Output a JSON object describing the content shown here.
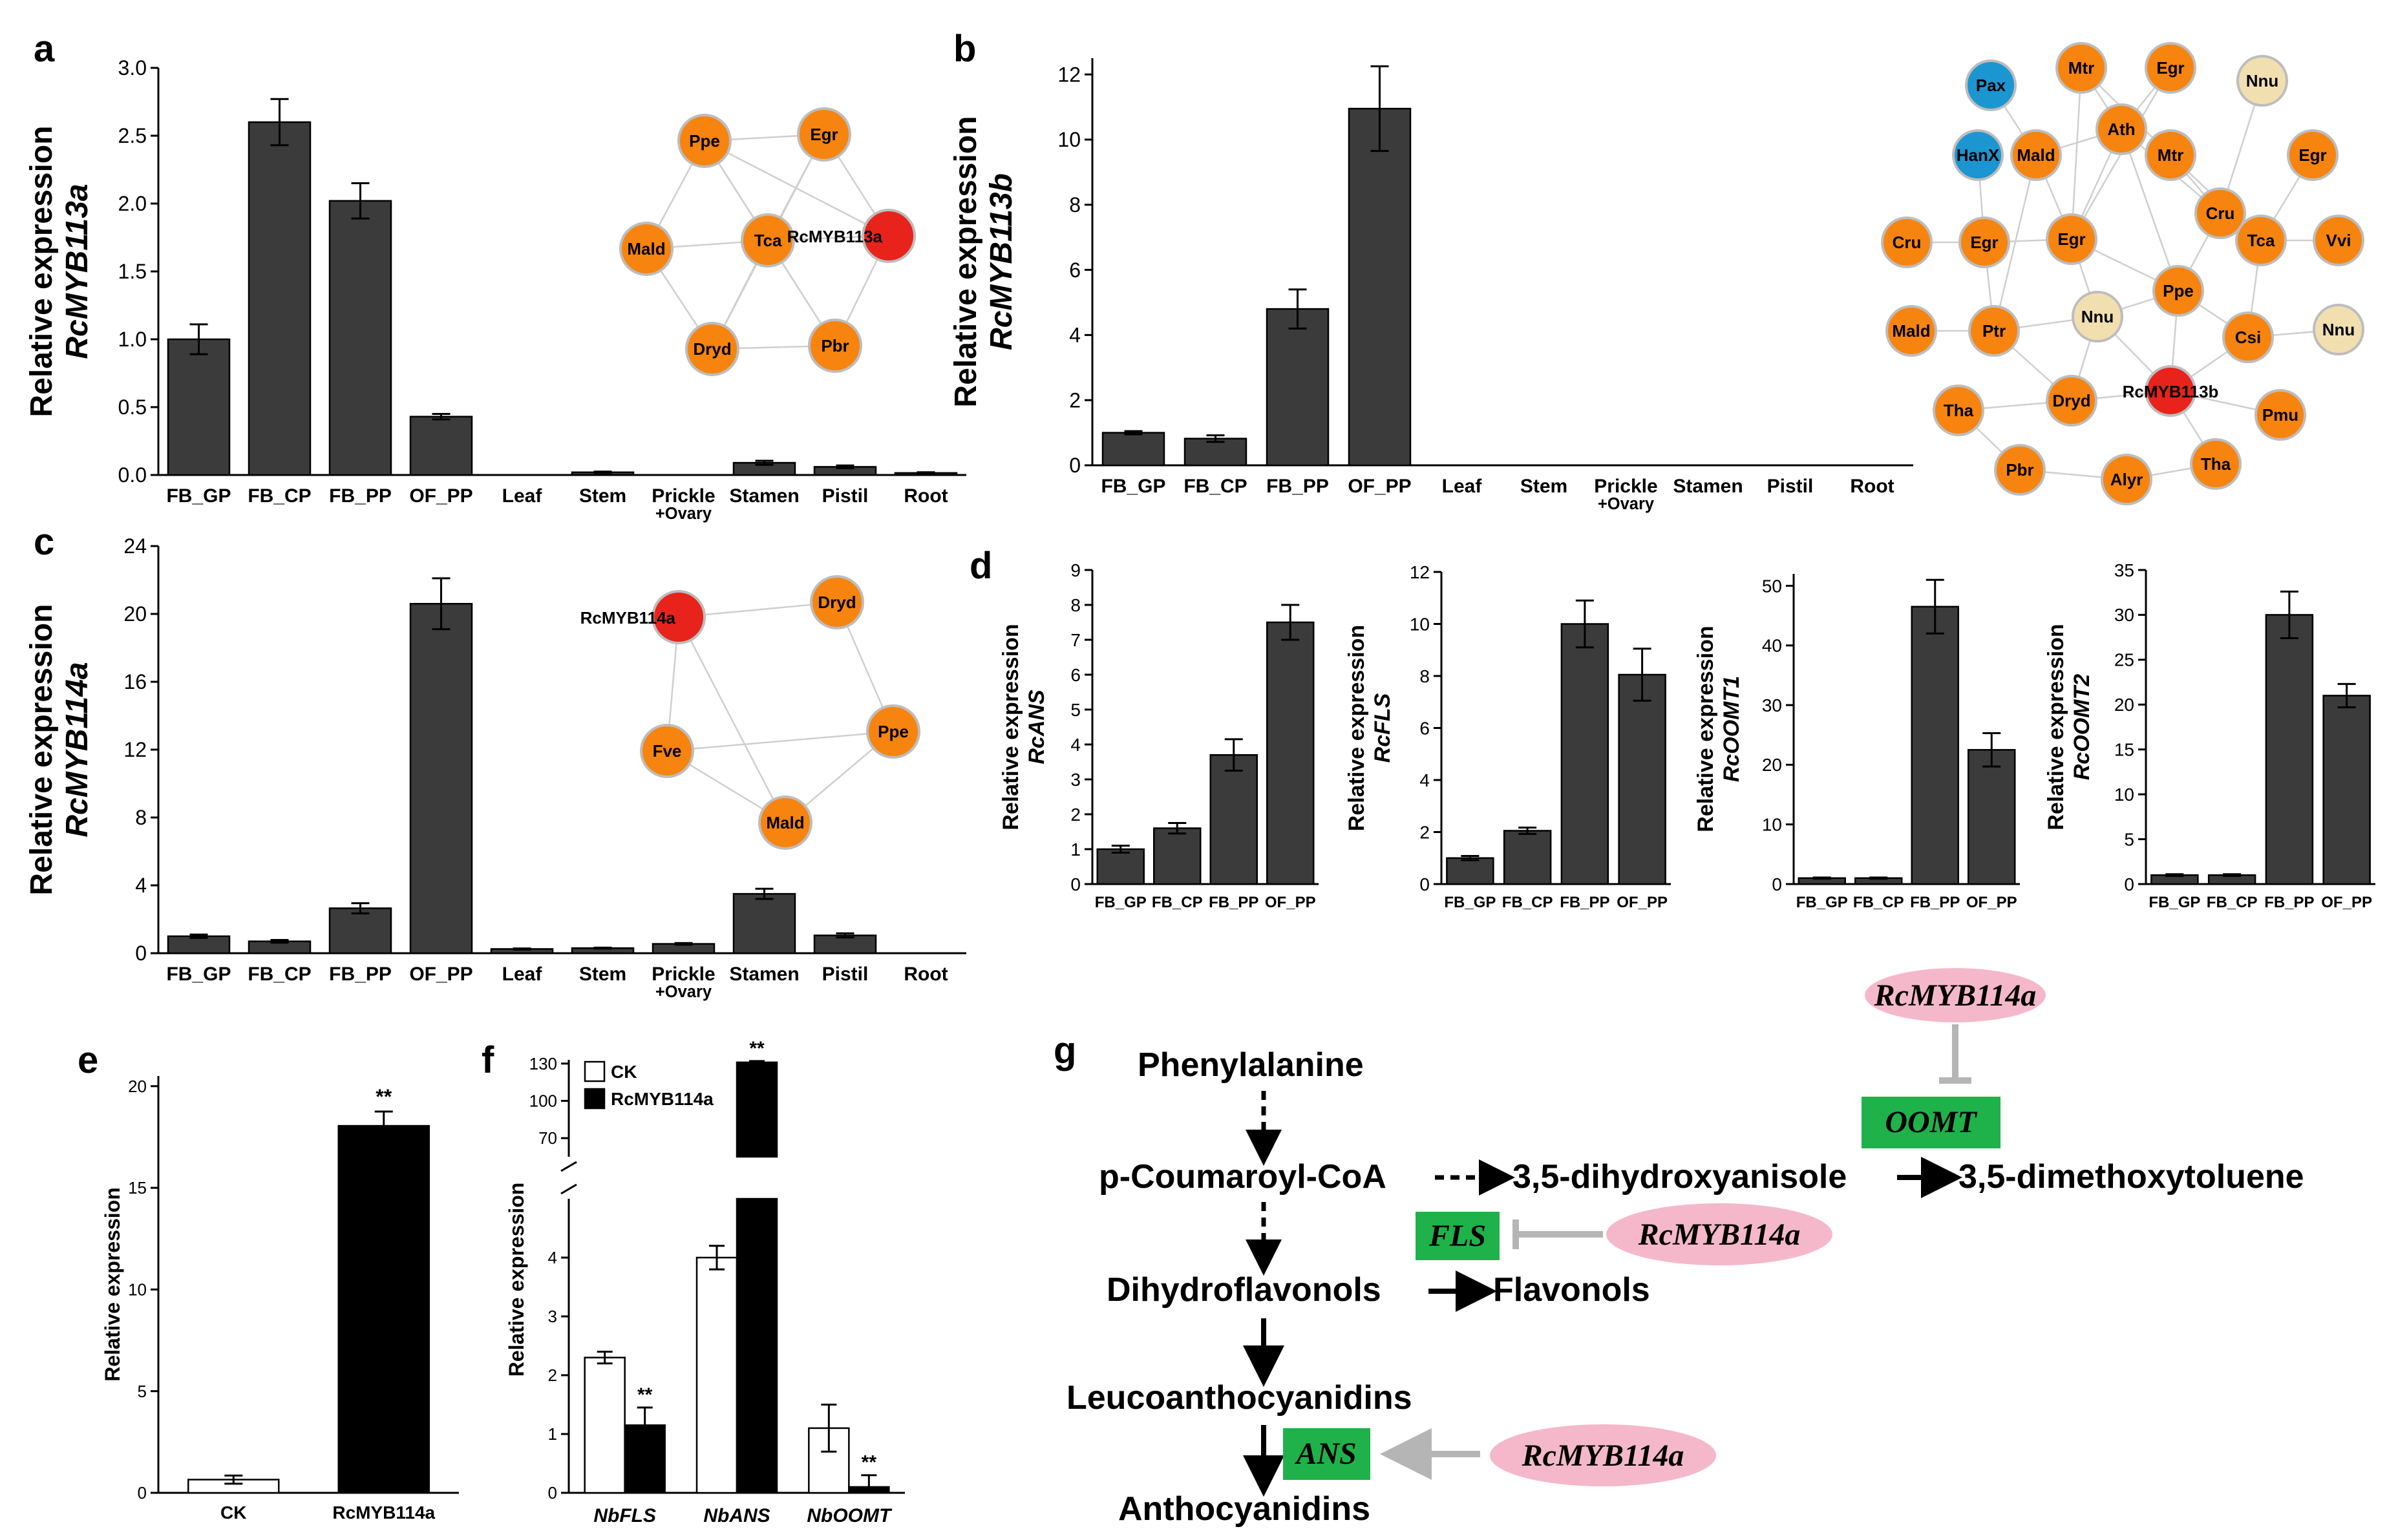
{
  "panel_labels": [
    "a",
    "b",
    "c",
    "d",
    "e",
    "f",
    "g"
  ],
  "chart_data": [
    {
      "id": "a",
      "type": "bar",
      "ylabel": "Relative expression",
      "ylabel_gene": "RcMYB113a",
      "categories": [
        "FB_GP",
        "FB_CP",
        "FB_PP",
        "OF_PP",
        "Leaf",
        "Stem",
        "Prickle",
        "Stamen",
        "Pistil",
        "Root"
      ],
      "values": [
        1.0,
        2.6,
        2.02,
        0.43,
        0.0,
        0.02,
        0.0,
        0.09,
        0.06,
        0.015
      ],
      "errors": [
        0.11,
        0.17,
        0.13,
        0.02,
        0.0,
        0.005,
        0.0,
        0.015,
        0.01,
        0.005
      ],
      "ylim": [
        0,
        3.0
      ],
      "yticks": [
        "0.0",
        "0.5",
        "1.0",
        "1.5",
        "2.0",
        "2.5",
        "3.0"
      ],
      "ytick_values": [
        0,
        0.5,
        1.0,
        1.5,
        2.0,
        2.5,
        3.0
      ],
      "sub_label": "+Ovary"
    },
    {
      "id": "b",
      "type": "bar",
      "ylabel": "Relative expression",
      "ylabel_gene": "RcMYB113b",
      "categories": [
        "FB_GP",
        "FB_CP",
        "FB_PP",
        "OF_PP",
        "Leaf",
        "Stem",
        "Prickle",
        "Stamen",
        "Pistil",
        "Root"
      ],
      "values": [
        1.0,
        0.82,
        4.8,
        10.95,
        0,
        0,
        0,
        0,
        0,
        0
      ],
      "errors": [
        0.05,
        0.1,
        0.6,
        1.3,
        0,
        0,
        0,
        0,
        0,
        0
      ],
      "ylim": [
        0,
        12.5
      ],
      "yticks": [
        "0",
        "2",
        "4",
        "6",
        "8",
        "10",
        "12"
      ],
      "ytick_values": [
        0,
        2,
        4,
        6,
        8,
        10,
        12
      ],
      "sub_label": "+Ovary"
    },
    {
      "id": "c",
      "type": "bar",
      "ylabel": "Relative expression",
      "ylabel_gene": "RcMYB114a",
      "categories": [
        "FB_GP",
        "FB_CP",
        "FB_PP",
        "OF_PP",
        "Leaf",
        "Stem",
        "Prickle",
        "Stamen",
        "Pistil",
        "Root"
      ],
      "values": [
        1.0,
        0.7,
        2.65,
        20.6,
        0.25,
        0.3,
        0.55,
        3.5,
        1.05,
        0
      ],
      "errors": [
        0.1,
        0.08,
        0.3,
        1.5,
        0.03,
        0.03,
        0.05,
        0.3,
        0.12,
        0
      ],
      "ylim": [
        0,
        24
      ],
      "yticks": [
        "0",
        "4",
        "8",
        "12",
        "16",
        "20",
        "24"
      ],
      "ytick_values": [
        0,
        4,
        8,
        12,
        16,
        20,
        24
      ],
      "sub_label": "+Ovary"
    },
    {
      "id": "d1",
      "type": "bar",
      "ylabel": "Relative expression",
      "ylabel_gene": "RcANS",
      "categories": [
        "FB_GP",
        "FB_CP",
        "FB_PP",
        "OF_PP"
      ],
      "values": [
        1.0,
        1.6,
        3.7,
        7.5
      ],
      "errors": [
        0.1,
        0.15,
        0.45,
        0.5
      ],
      "ylim": [
        0,
        9
      ],
      "yticks": [
        "0",
        "1",
        "2",
        "3",
        "4",
        "5",
        "6",
        "7",
        "8",
        "9"
      ],
      "ytick_values": [
        0,
        1,
        2,
        3,
        4,
        5,
        6,
        7,
        8,
        9
      ]
    },
    {
      "id": "d2",
      "type": "bar",
      "ylabel": "Relative expression",
      "ylabel_gene": "RcFLS",
      "categories": [
        "FB_GP",
        "FB_CP",
        "FB_PP",
        "OF_PP"
      ],
      "values": [
        1.0,
        2.05,
        10.0,
        8.05
      ],
      "errors": [
        0.08,
        0.12,
        0.9,
        1.0
      ],
      "ylim": [
        0,
        12
      ],
      "yticks": [
        "0",
        "2",
        "4",
        "6",
        "8",
        "10",
        "12"
      ],
      "ytick_values": [
        0,
        2,
        4,
        6,
        8,
        10,
        12
      ]
    },
    {
      "id": "d3",
      "type": "bar",
      "ylabel": "Relative expression",
      "ylabel_gene": "RcOOMT1",
      "categories": [
        "FB_GP",
        "FB_CP",
        "FB_PP",
        "OF_PP"
      ],
      "values": [
        1.0,
        1.0,
        46.5,
        22.5
      ],
      "errors": [
        0.1,
        0.1,
        4.5,
        2.8
      ],
      "ylim": [
        0,
        52
      ],
      "yticks": [
        "0",
        "10",
        "20",
        "30",
        "40",
        "50"
      ],
      "ytick_values": [
        0,
        10,
        20,
        30,
        40,
        50
      ]
    },
    {
      "id": "d4",
      "type": "bar",
      "ylabel": "Relative expression",
      "ylabel_gene": "RcOOMT2",
      "categories": [
        "FB_GP",
        "FB_CP",
        "FB_PP",
        "OF_PP"
      ],
      "values": [
        1.0,
        1.0,
        30.0,
        21.0
      ],
      "errors": [
        0.1,
        0.1,
        2.6,
        1.3
      ],
      "ylim": [
        0,
        35
      ],
      "yticks": [
        "0",
        "5",
        "10",
        "15",
        "20",
        "25",
        "30",
        "35"
      ],
      "ytick_values": [
        0,
        5,
        10,
        15,
        20,
        25,
        30,
        35
      ]
    },
    {
      "id": "e",
      "type": "bar",
      "ylabel": "Relative expression",
      "categories": [
        "CK",
        "RcMYB114a"
      ],
      "values": [
        0.65,
        18.05
      ],
      "errors": [
        0.2,
        0.7
      ],
      "fills": [
        "#ffffff",
        "#000000"
      ],
      "ylim": [
        0,
        20.5
      ],
      "yticks": [
        "0",
        "5",
        "10",
        "15",
        "20"
      ],
      "ytick_values": [
        0,
        5,
        10,
        15,
        20
      ],
      "significance": [
        "",
        "**"
      ]
    },
    {
      "id": "f",
      "type": "bar",
      "ylabel": "Relative expression",
      "categories": [
        "NbFLS",
        "NbANS",
        "NbOOMT"
      ],
      "series": [
        {
          "name": "CK",
          "values": [
            2.3,
            4.0,
            1.1
          ],
          "errors": [
            0.1,
            0.2,
            0.4
          ],
          "fill": "#ffffff"
        },
        {
          "name": "RcMYB114a",
          "values": [
            1.15,
            131,
            0.1
          ],
          "errors": [
            0.3,
            1.0,
            0.2
          ],
          "fill": "#000000"
        }
      ],
      "lower_ylim": [
        0,
        5
      ],
      "lower_yticks": [
        "0",
        "1",
        "2",
        "3",
        "4"
      ],
      "lower_ytick_values": [
        0,
        1,
        2,
        3,
        4
      ],
      "upper_ylim": [
        55,
        133
      ],
      "upper_yticks": [
        "70",
        "100",
        "130"
      ],
      "upper_ytick_values": [
        70,
        100,
        130
      ],
      "axis_break": true,
      "significance": [
        "**",
        "**",
        "**"
      ]
    }
  ],
  "networks": {
    "a": {
      "hub": "RcMYB113a",
      "nodes": [
        "Ppe",
        "Egr",
        "Mald",
        "Tca",
        "RcMYB113a",
        "Dryd",
        "Pbr"
      ],
      "colors": [
        "orange",
        "orange",
        "orange",
        "orange",
        "red",
        "orange",
        "orange"
      ]
    },
    "b": {
      "hub": "RcMYB113b",
      "nodes": [
        "Mtr",
        "Egr",
        "Nnu",
        "Pax",
        "Ath",
        "HanX",
        "Mald",
        "Mtr",
        "Egr",
        "Cru",
        "Cru",
        "Egr",
        "Egr",
        "Tca",
        "Vvi",
        "Ppe",
        "Mald",
        "Ptr",
        "Nnu",
        "Csi",
        "Nnu",
        "Dryd",
        "RcMYB113b",
        "Tha",
        "Pmu",
        "Pbr",
        "Alyr",
        "Tha"
      ],
      "colors": [
        "orange",
        "orange",
        "beige",
        "blue",
        "orange",
        "blue",
        "orange",
        "orange",
        "orange",
        "orange",
        "orange",
        "orange",
        "orange",
        "orange",
        "orange",
        "orange",
        "orange",
        "orange",
        "beige",
        "orange",
        "beige",
        "orange",
        "red",
        "orange",
        "orange",
        "orange",
        "orange",
        "orange"
      ]
    },
    "c": {
      "hub": "RcMYB114a",
      "nodes": [
        "RcMYB114a",
        "Dryd",
        "Ppe",
        "Fve",
        "Mald"
      ],
      "colors": [
        "red",
        "orange",
        "orange",
        "orange",
        "orange"
      ]
    }
  },
  "pathway": {
    "compounds": {
      "phenylalanine": "Phenylalanine",
      "coumaroyl": "p-Coumaroyl-CoA",
      "dihydroxyanisole": "3,5-dihydroxyanisole",
      "dimethoxytoluene": "3,5-dimethoxytoluene",
      "dihydroflavonols": "Dihydroflavonols",
      "flavonols": "Flavonols",
      "leucoanthocyanidins": "Leucoanthocyanidins",
      "anthocyanidins": "Anthocyanidins"
    },
    "enzymes": {
      "oomt": "OOMT",
      "fls": "FLS",
      "ans": "ANS"
    },
    "regulator": "RcMYB114a",
    "colors": {
      "enzyme_box": "#1fb24a",
      "regulator": "#f5b8cb",
      "bar": "#3b3b3b",
      "node_orange": "#f7840f",
      "node_red": "#e8231c",
      "node_blue": "#1b96d1",
      "node_beige": "#f2dfb0"
    }
  }
}
